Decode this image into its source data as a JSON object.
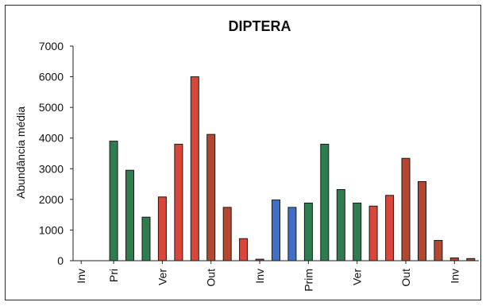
{
  "chart_data": {
    "type": "bar",
    "title": "DIPTERA",
    "xlabel": "",
    "ylabel": "Abundância média",
    "ylim": [
      0,
      7000
    ],
    "yticks": [
      0,
      1000,
      2000,
      3000,
      4000,
      5000,
      6000,
      7000
    ],
    "grid": false,
    "legend": "none",
    "x_tick_labels": [
      {
        "label": "Inv",
        "index": 0
      },
      {
        "label": "Pri",
        "index": 2
      },
      {
        "label": "Ver",
        "index": 5
      },
      {
        "label": "Out",
        "index": 8
      },
      {
        "label": "Inv",
        "index": 11
      },
      {
        "label": "Prim",
        "index": 14
      },
      {
        "label": "Ver",
        "index": 17
      },
      {
        "label": "Out",
        "index": 20
      },
      {
        "label": "Inv",
        "index": 23
      }
    ],
    "colors": {
      "green": "#2e7d4f",
      "red": "#d9473b",
      "brown": "#b5472f",
      "blue": "#3f6fc7",
      "outline": "#1a1a1a"
    },
    "bars": [
      {
        "value": 0,
        "color": "green"
      },
      {
        "value": 0,
        "color": "green"
      },
      {
        "value": 3900,
        "color": "green"
      },
      {
        "value": 2950,
        "color": "green"
      },
      {
        "value": 1420,
        "color": "green"
      },
      {
        "value": 2080,
        "color": "red"
      },
      {
        "value": 3800,
        "color": "red"
      },
      {
        "value": 6000,
        "color": "red"
      },
      {
        "value": 4120,
        "color": "brown"
      },
      {
        "value": 1740,
        "color": "brown"
      },
      {
        "value": 720,
        "color": "red"
      },
      {
        "value": 50,
        "color": "brown"
      },
      {
        "value": 1980,
        "color": "blue"
      },
      {
        "value": 1740,
        "color": "blue"
      },
      {
        "value": 1880,
        "color": "green"
      },
      {
        "value": 3800,
        "color": "green"
      },
      {
        "value": 2320,
        "color": "green"
      },
      {
        "value": 1880,
        "color": "green"
      },
      {
        "value": 1780,
        "color": "red"
      },
      {
        "value": 2130,
        "color": "red"
      },
      {
        "value": 3340,
        "color": "brown"
      },
      {
        "value": 2580,
        "color": "brown"
      },
      {
        "value": 660,
        "color": "brown"
      },
      {
        "value": 90,
        "color": "brown"
      },
      {
        "value": 70,
        "color": "brown"
      }
    ]
  }
}
